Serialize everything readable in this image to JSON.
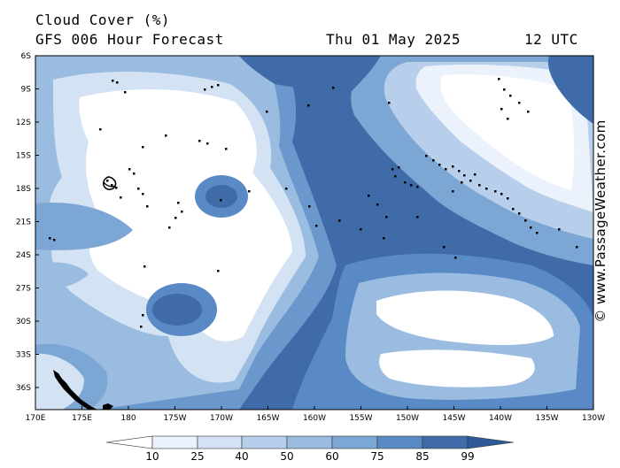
{
  "header": {
    "title": "Cloud Cover (%)",
    "subtitle": "GFS 006 Hour Forecast",
    "date": "Thu 01 May 2025",
    "time": "12 UTC"
  },
  "watermark": "© www.PassageWeather.com",
  "map": {
    "variable": "cloud cover",
    "unit": "%",
    "lat_range": [
      "6S",
      "38S"
    ],
    "lon_range": [
      "170E",
      "130W"
    ],
    "lat_labels": [
      "6S",
      "9S",
      "12S",
      "15S",
      "18S",
      "21S",
      "24S",
      "27S",
      "30S",
      "33S",
      "36S"
    ],
    "lon_labels": [
      "170E",
      "175E",
      "180",
      "175W",
      "170W",
      "165W",
      "160W",
      "155W",
      "150W",
      "145W",
      "140W",
      "135W",
      "130W"
    ],
    "land_color": "#000000"
  },
  "legend": {
    "labels": [
      "10",
      "25",
      "40",
      "50",
      "60",
      "75",
      "85",
      "99"
    ],
    "colors": [
      "#ffffff",
      "#ebf2fb",
      "#d4e3f4",
      "#b7cfea",
      "#9abce0",
      "#7ca6d4",
      "#5a8ac5",
      "#3f6ba9",
      "#2f5a98"
    ]
  }
}
